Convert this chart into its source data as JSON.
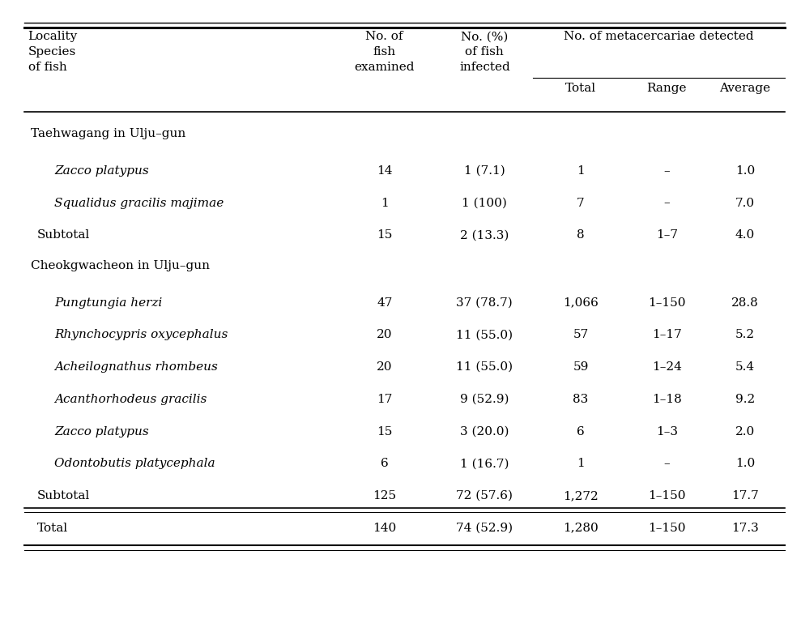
{
  "bg_color": "#ffffff",
  "text_color": "#000000",
  "figsize": [
    9.89,
    7.64
  ],
  "dpi": 100,
  "sections": [
    {
      "section_label": "Taehwagang in Ulju–gun",
      "rows": [
        {
          "species": "Zacco platypus",
          "italic": true,
          "no_examined": "14",
          "no_infected": "1 (7.1)",
          "total": "1",
          "range": "–",
          "average": "1.0"
        },
        {
          "species": "Squalidus gracilis majimae",
          "italic": true,
          "no_examined": "1",
          "no_infected": "1 (100)",
          "total": "7",
          "range": "–",
          "average": "7.0"
        },
        {
          "species": "Subtotal",
          "italic": false,
          "no_examined": "15",
          "no_infected": "2 (13.3)",
          "total": "8",
          "range": "1–7",
          "average": "4.0"
        }
      ]
    },
    {
      "section_label": "Cheokgwacheon in Ulju–gun",
      "rows": [
        {
          "species": "Pungtungia herzi",
          "italic": true,
          "no_examined": "47",
          "no_infected": "37 (78.7)",
          "total": "1,066",
          "range": "1–150",
          "average": "28.8"
        },
        {
          "species": "Rhynchocypris oxycephalus",
          "italic": true,
          "no_examined": "20",
          "no_infected": "11 (55.0)",
          "total": "57",
          "range": "1–17",
          "average": "5.2"
        },
        {
          "species": "Acheilognathus rhombeus",
          "italic": true,
          "no_examined": "20",
          "no_infected": "11 (55.0)",
          "total": "59",
          "range": "1–24",
          "average": "5.4"
        },
        {
          "species": "Acanthorhodeus gracilis",
          "italic": true,
          "no_examined": "17",
          "no_infected": "9 (52.9)",
          "total": "83",
          "range": "1–18",
          "average": "9.2"
        },
        {
          "species": "Zacco platypus",
          "italic": true,
          "no_examined": "15",
          "no_infected": "3 (20.0)",
          "total": "6",
          "range": "1–3",
          "average": "2.0"
        },
        {
          "species": "Odontobutis platycephala",
          "italic": true,
          "no_examined": "6",
          "no_infected": "1 (16.7)",
          "total": "1",
          "range": "–",
          "average": "1.0"
        },
        {
          "species": "Subtotal",
          "italic": false,
          "no_examined": "125",
          "no_infected": "72 (57.6)",
          "total": "1,272",
          "range": "1–150",
          "average": "17.7"
        }
      ]
    }
  ],
  "total_row": {
    "species": "Total",
    "italic": false,
    "no_examined": "140",
    "no_infected": "74 (52.9)",
    "total": "1,280",
    "range": "1–150",
    "average": "17.3"
  },
  "font_size": 11.0
}
